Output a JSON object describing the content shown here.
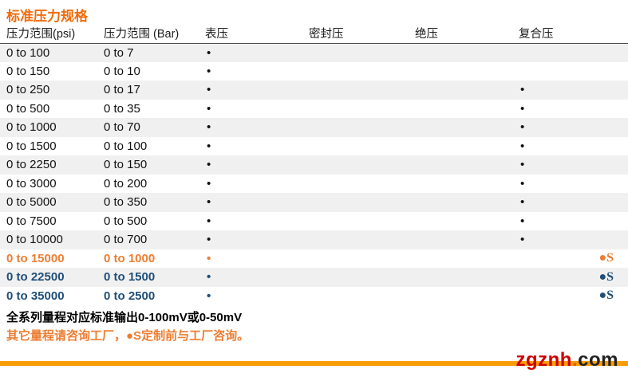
{
  "title": {
    "text": "标准压力规格",
    "color": "#f26b0a"
  },
  "table": {
    "headers": [
      "压力范围(psi)",
      "压力范围 (Bar)",
      "表压",
      "密封压",
      "绝压",
      "复合压"
    ],
    "dot_glyph": "•",
    "s_mark_glyph": "●S",
    "rows": [
      {
        "psi": "0 to 100",
        "bar": "0 to 7",
        "gauge": true,
        "sealed": false,
        "absolute": false,
        "compound": false,
        "s_mark": false,
        "style": "normal"
      },
      {
        "psi": "0 to 150",
        "bar": "0 to 10",
        "gauge": true,
        "sealed": false,
        "absolute": false,
        "compound": false,
        "s_mark": false,
        "style": "normal"
      },
      {
        "psi": "0 to 250",
        "bar": "0 to 17",
        "gauge": true,
        "sealed": false,
        "absolute": false,
        "compound": true,
        "s_mark": false,
        "style": "normal"
      },
      {
        "psi": "0 to 500",
        "bar": "0 to 35",
        "gauge": true,
        "sealed": false,
        "absolute": false,
        "compound": true,
        "s_mark": false,
        "style": "normal"
      },
      {
        "psi": "0 to 1000",
        "bar": "0 to 70",
        "gauge": true,
        "sealed": false,
        "absolute": false,
        "compound": true,
        "s_mark": false,
        "style": "normal"
      },
      {
        "psi": "0 to 1500",
        "bar": "0 to 100",
        "gauge": true,
        "sealed": false,
        "absolute": false,
        "compound": true,
        "s_mark": false,
        "style": "normal"
      },
      {
        "psi": "0 to 2250",
        "bar": "0 to 150",
        "gauge": true,
        "sealed": false,
        "absolute": false,
        "compound": true,
        "s_mark": false,
        "style": "normal"
      },
      {
        "psi": "0 to 3000",
        "bar": "0 to 200",
        "gauge": true,
        "sealed": false,
        "absolute": false,
        "compound": true,
        "s_mark": false,
        "style": "normal"
      },
      {
        "psi": "0 to 5000",
        "bar": "0 to 350",
        "gauge": true,
        "sealed": false,
        "absolute": false,
        "compound": true,
        "s_mark": false,
        "style": "normal"
      },
      {
        "psi": "0 to 7500",
        "bar": "0 to 500",
        "gauge": true,
        "sealed": false,
        "absolute": false,
        "compound": true,
        "s_mark": false,
        "style": "normal"
      },
      {
        "psi": "0 to 10000",
        "bar": "0 to 700",
        "gauge": true,
        "sealed": false,
        "absolute": false,
        "compound": true,
        "s_mark": false,
        "style": "normal"
      },
      {
        "psi": "0 to 15000",
        "bar": "0 to 1000",
        "gauge": true,
        "sealed": false,
        "absolute": false,
        "compound": false,
        "s_mark": true,
        "style": "orange"
      },
      {
        "psi": "0 to 22500",
        "bar": "0 to 1500",
        "gauge": true,
        "sealed": false,
        "absolute": false,
        "compound": false,
        "s_mark": true,
        "style": "blue"
      },
      {
        "psi": "0 to 35000",
        "bar": "0 to 2500",
        "gauge": true,
        "sealed": false,
        "absolute": false,
        "compound": false,
        "s_mark": true,
        "style": "blue"
      }
    ]
  },
  "notes": [
    {
      "text": "全系列量程对应标准输出0-100mV或0-50mV",
      "color": "#000000"
    },
    {
      "text": "其它量程请咨询工厂，●S定制前与工厂咨询。",
      "color": "#ed7d31"
    }
  ],
  "watermark": {
    "name": "zgznh",
    "dot": ".",
    "tld": "com",
    "bar_color": "#f99d05",
    "name_color": "#cc0000",
    "tld_color": "#222222"
  },
  "colors": {
    "title_orange": "#f26b0a",
    "accent_orange": "#ed7d31",
    "accent_blue": "#1f4e79",
    "stripe_gray": "#f0f0f0",
    "header_rule": "#4d4d4d"
  }
}
